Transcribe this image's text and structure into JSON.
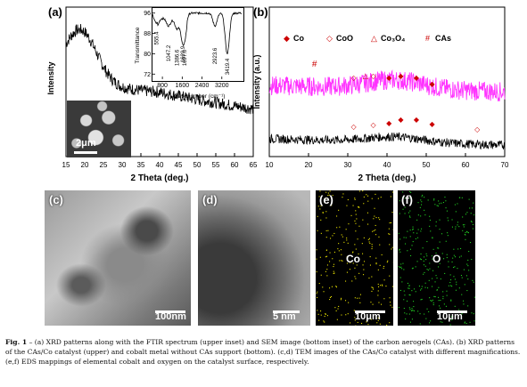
{
  "panel_a": {
    "label": "(a)",
    "xlabel": "2 Theta (deg.)",
    "ylabel": "Intensity",
    "xticks": [
      "15",
      "20",
      "25",
      "30",
      "35",
      "40",
      "45",
      "50",
      "55",
      "60",
      "65"
    ],
    "inset_label": "2μm",
    "ftir": {
      "ylabel": "Transmittance",
      "xlabel": "Wavenumber (cm⁻¹)",
      "yticks": [
        "96",
        "88",
        "80",
        "72"
      ],
      "xticks": [
        "800",
        "1600",
        "2400",
        "3200"
      ],
      "peaks": [
        "555.4",
        "1047.2",
        "1386.6",
        "1620.9",
        "1697.0",
        "2923.6",
        "3419.4"
      ]
    }
  },
  "panel_b": {
    "label": "(b)",
    "xlabel": "2 Theta (deg.)",
    "ylabel": "Intensity (a.u.)",
    "xticks": [
      "10",
      "20",
      "30",
      "40",
      "50",
      "60",
      "70"
    ],
    "legend": [
      {
        "symbol": "◆",
        "text": "Co",
        "color": "#cc0000"
      },
      {
        "symbol": "◇",
        "text": "CoO",
        "color": "#cc0000"
      },
      {
        "symbol": "△",
        "text": "Co₃O₄",
        "color": "#cc0000"
      },
      {
        "symbol": "#",
        "text": "CAs",
        "color": "#cc0000"
      }
    ]
  },
  "panel_c": {
    "label": "(c)",
    "scale": "100nm"
  },
  "panel_d": {
    "label": "(d)",
    "scale": "5 nm"
  },
  "panel_e": {
    "label": "(e)",
    "element": "Co",
    "scale": "10μm"
  },
  "panel_f": {
    "label": "(f)",
    "element": "O",
    "scale": "10μm"
  },
  "caption": {
    "fig": "Fig. 1",
    "text": " – (a) XRD patterns along with the FTIR spectrum (upper inset) and SEM image (bottom inset) of the carbon aerogels (CAs). (b) XRD patterns of the CAs/Co catalyst (upper) and cobalt metal without CAs support (bottom). (c,d) TEM images of the CAs/Co catalyst with different magnifications. (e,f) EDS mappings of elemental cobalt and oxygen on the catalyst surface, respectively."
  },
  "colors": {
    "magenta": "#ff33ff",
    "red": "#cc0000",
    "co_dots": "#e8e000",
    "o_dots": "#22cc22"
  }
}
